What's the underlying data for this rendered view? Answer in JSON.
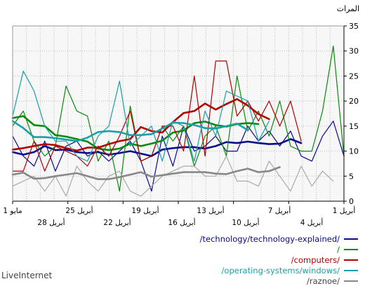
{
  "branding": "LiveInternet",
  "chart_data": {
    "type": "line",
    "ylabel": "المرات",
    "ylim": [
      0,
      35
    ],
    "yticks": [
      "0",
      "5",
      "10",
      "15",
      "20",
      "25",
      "30",
      "35"
    ],
    "x_labels_top": [
      "1 مايو",
      "25 أبريل",
      "19 أبريل",
      "13 أبريل",
      "7 أبريل",
      "1 أبريل"
    ],
    "x_labels_bottom": [
      "28 أبريل",
      "22 أبريل",
      "16 أبريل",
      "10 أبريل",
      "4 أبريل"
    ],
    "grid": true,
    "series": [
      {
        "name": "/technology/technology-explained/",
        "color": "#0b0b8e",
        "kind": "thin",
        "values": [
          13,
          9,
          7,
          12,
          6,
          11,
          12,
          9,
          10,
          8,
          10,
          12,
          8,
          2,
          13,
          7,
          15,
          10,
          11,
          13,
          10,
          10,
          15,
          12,
          14,
          11,
          14,
          9,
          8,
          13,
          16,
          9
        ]
      },
      {
        "name": "/technology/technology-explained/",
        "color": "#0b0b8e",
        "kind": "smooth",
        "values": [
          9.8,
          9.3,
          9.8,
          11.0,
          10.2,
          10.3,
          9.8,
          9.6,
          9.8,
          9.3,
          9.6,
          10.0,
          9.5,
          9.0,
          10.3,
          10.6,
          10.8,
          10.8,
          10.5,
          11.0,
          11.8,
          11.6,
          11.9,
          11.6,
          11.4,
          11.5,
          12.4,
          11.6
        ]
      },
      {
        "name": "/",
        "color": "#0a8a0a",
        "kind": "thin",
        "values": [
          15,
          18,
          12,
          9,
          11,
          23,
          18,
          17,
          8,
          12,
          2,
          19,
          8,
          9,
          15,
          12,
          15,
          7,
          13,
          15,
          9,
          25,
          14,
          18,
          13,
          20,
          11,
          10,
          10,
          18,
          31,
          9
        ]
      },
      {
        "name": "/",
        "color": "#0a8a0a",
        "kind": "smooth",
        "values": [
          16.6,
          17.0,
          15.2,
          15.0,
          13.2,
          12.9,
          12.4,
          11.9,
          10.5,
          10.2,
          10.5,
          11.5,
          11.0,
          11.5,
          12.1,
          13.7,
          14.1,
          15.6,
          15.9,
          15.2,
          14.9,
          15.4,
          15.6,
          15.4
        ]
      },
      {
        "name": "/computers/",
        "color": "#b00000",
        "kind": "thin",
        "values": [
          6,
          6,
          12,
          6,
          11,
          10,
          9,
          7,
          11,
          9,
          13,
          18,
          8,
          9,
          15,
          15,
          10,
          25,
          9,
          28,
          28,
          17,
          20,
          16,
          20,
          15,
          20,
          12
        ]
      },
      {
        "name": "/computers/",
        "color": "#b00000",
        "kind": "smooth",
        "values": [
          10.3,
          10.6,
          11.0,
          11.4,
          11.2,
          10.6,
          10.1,
          10.7,
          10.7,
          11.4,
          12.0,
          12.4,
          14.8,
          14.0,
          13.7,
          15.8,
          17.6,
          18.0,
          19.5,
          18.3,
          19.4,
          20.4,
          19.1,
          17.4,
          16.4
        ]
      },
      {
        "name": "/operating-systems/windows/",
        "color": "#18a0a8",
        "kind": "thin",
        "values": [
          17,
          26,
          22,
          15,
          12,
          12,
          9,
          8,
          13,
          15,
          24,
          11,
          13,
          15,
          8,
          16,
          15,
          8,
          18,
          13,
          22,
          21,
          20,
          12,
          16
        ]
      },
      {
        "name": "/operating-systems/windows/",
        "color": "#18a0a8",
        "kind": "smooth",
        "values": [
          16.0,
          14.6,
          12.8,
          12.8,
          12.6,
          12.3,
          12.0,
          12.7,
          13.8,
          14.0,
          13.8,
          13.2,
          13.2,
          13.4,
          14.5,
          15.7,
          15.6,
          15.2,
          14.6,
          14.5,
          15.0,
          15.5,
          14.2
        ]
      },
      {
        "name": "/raznoe/",
        "color": "#aaaaaa",
        "kind": "thin",
        "values": [
          3,
          4,
          5,
          2,
          5,
          1,
          7,
          4,
          2,
          5,
          6,
          2,
          1,
          3,
          5,
          6,
          7,
          7,
          5,
          5,
          9,
          4,
          4,
          3,
          8,
          5,
          2,
          7,
          3,
          6,
          4
        ]
      },
      {
        "name": "/raznoe/",
        "color": "#888888",
        "kind": "smooth",
        "values": [
          5.3,
          5.7,
          4.5,
          4.6,
          5.0,
          5.3,
          5.6,
          5.0,
          4.4,
          4.4,
          4.8,
          5.3,
          5.8,
          4.9,
          5.2,
          5.5,
          5.8,
          5.8,
          5.8,
          5.5,
          5.4,
          6.0,
          6.5,
          5.8,
          6.0,
          6.8
        ]
      }
    ]
  },
  "legend": [
    {
      "label": "/technology/technology-explained/",
      "color": "#0b0b8e",
      "text_color": "#0b0b8e"
    },
    {
      "label": "/",
      "color": "#0a8a0a",
      "text_color": "#0a8a0a"
    },
    {
      "label": "/computers/",
      "color": "#b00000",
      "text_color": "#b00000"
    },
    {
      "label": "/operating-systems/windows/",
      "color": "#18a0a8",
      "text_color": "#18a0a8"
    },
    {
      "label": "/raznoe/",
      "color": "#888888",
      "text_color": "#444444"
    }
  ]
}
